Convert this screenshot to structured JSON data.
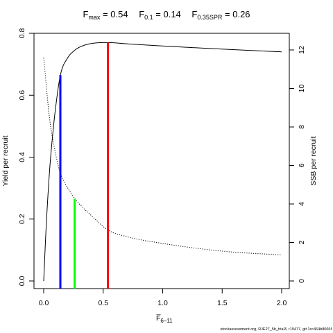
{
  "title": {
    "fmax_label": "F",
    "fmax_sub": "max",
    "fmax_value": "= 0.54",
    "f01_label": "F",
    "f01_sub": "0.1",
    "f01_value": "= 0.14",
    "fspr_label": "F",
    "fspr_sub": "0.35SPR",
    "fspr_value": "= 0.26"
  },
  "footer": "stockassessment.org, RJE27_5b_trial3, r19477, git:1cc464b8066f",
  "chart_data": {
    "type": "line",
    "x_axis": {
      "label": "F̅",
      "label_sub": "6–11",
      "range": [
        0,
        2.0
      ],
      "ticks": [
        0.0,
        0.5,
        1.0,
        1.5,
        2.0
      ],
      "tick_labels": [
        "0.0",
        "0.5",
        "1.0",
        "1.5",
        "2.0"
      ]
    },
    "y_axis_left": {
      "label": "Yield per recruit",
      "range": [
        0,
        0.8
      ],
      "ticks": [
        0.0,
        0.2,
        0.4,
        0.6,
        0.8
      ],
      "tick_labels": [
        "0.0",
        "0.2",
        "0.4",
        "0.6",
        "0.8"
      ]
    },
    "y_axis_right": {
      "label": "SSB per recruit",
      "range": [
        0,
        12
      ],
      "ticks": [
        0,
        2,
        4,
        6,
        8,
        10,
        12
      ],
      "tick_labels": [
        "0",
        "2",
        "4",
        "6",
        "8",
        "10",
        "12"
      ]
    },
    "grid": false,
    "series": [
      {
        "axis": "left",
        "style": "solid",
        "color": "#000000",
        "x": [
          0,
          0.02,
          0.05,
          0.08,
          0.1,
          0.14,
          0.2,
          0.26,
          0.3,
          0.4,
          0.54,
          0.7,
          1.0,
          1.5,
          2.0
        ],
        "y": [
          0,
          0.17,
          0.36,
          0.49,
          0.56,
          0.665,
          0.72,
          0.745,
          0.755,
          0.767,
          0.77,
          0.766,
          0.759,
          0.749,
          0.74
        ]
      },
      {
        "axis": "right",
        "style": "dotted",
        "color": "#000000",
        "x": [
          0,
          0.05,
          0.1,
          0.14,
          0.2,
          0.26,
          0.3,
          0.4,
          0.54,
          0.7,
          1.0,
          1.5,
          2.0
        ],
        "y": [
          11.6,
          8.4,
          6.6,
          5.6,
          4.85,
          4.3,
          4.0,
          3.4,
          2.65,
          2.3,
          1.95,
          1.55,
          1.35
        ]
      }
    ],
    "reference_lines": [
      {
        "name": "F0.1",
        "x": 0.14,
        "y": 0.665,
        "color": "#0000ff"
      },
      {
        "name": "F0.35SPR",
        "x": 0.26,
        "y": 0.265,
        "color": "#00ff00"
      },
      {
        "name": "Fmax",
        "x": 0.54,
        "y": 0.77,
        "color": "#ff0000"
      }
    ]
  }
}
